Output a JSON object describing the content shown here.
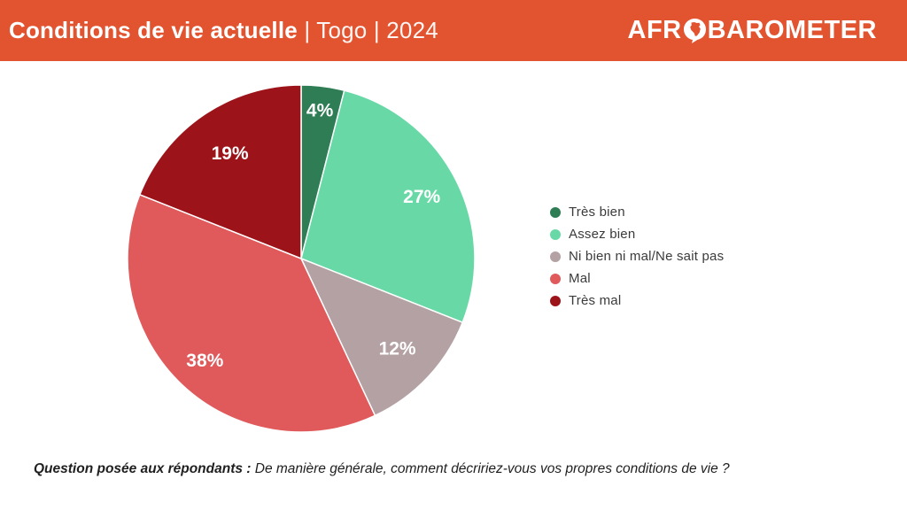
{
  "colors": {
    "header_bg": "#E2532F",
    "header_text": "#FFFFFF",
    "legend_text": "#3B3B3B",
    "footer_text": "#1F1F1F",
    "slice_stroke": "#FFFFFF"
  },
  "header": {
    "title_bold": "Conditions de vie actuelle",
    "title_rest": " | Togo | 2024",
    "logo_text_before_icon": "AFR",
    "logo_icon": "africa-speech-bubble-icon",
    "logo_text_after_icon": "BAROMETER"
  },
  "chart_data": {
    "type": "pie",
    "title": "Conditions de vie actuelle | Togo | 2024",
    "unit": "%",
    "start_angle_deg": 0,
    "direction": "clockwise",
    "legend_position": "right",
    "label_format": "percent",
    "slices": [
      {
        "label": "Très bien",
        "value": 4,
        "display": "4%",
        "color": "#2F7D55",
        "label_r": 0.86
      },
      {
        "label": "Assez bien",
        "value": 27,
        "display": "27%",
        "color": "#68D9A6",
        "label_r": 0.78
      },
      {
        "label": "Ni bien ni mal/Ne sait pas",
        "value": 12,
        "display": "12%",
        "color": "#B4A1A4",
        "label_r": 0.76
      },
      {
        "label": "Mal",
        "value": 38,
        "display": "38%",
        "color": "#E05A5C",
        "label_r": 0.81
      },
      {
        "label": "Très mal",
        "value": 19,
        "display": "19%",
        "color": "#9C141A",
        "label_r": 0.73
      }
    ]
  },
  "footer": {
    "lead": "Question posée aux répondants :",
    "question": " De manière générale, comment décririez-vous vos propres conditions de vie ?"
  }
}
